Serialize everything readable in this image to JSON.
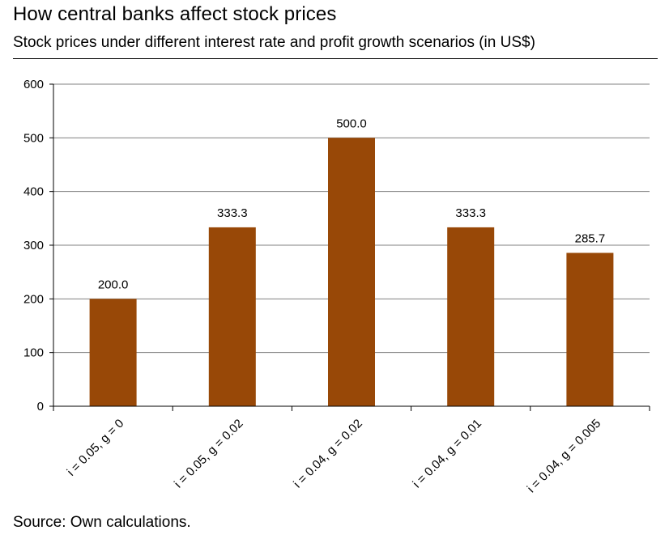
{
  "title": "How central banks affect stock prices",
  "subtitle": "Stock prices under different interest rate and profit growth scenarios (in US$)",
  "source": "Source: Own calculations.",
  "chart_data": {
    "type": "bar",
    "categories": [
      "i = 0.05, g = 0",
      "i = 0.05, g = 0.02",
      "i = 0.04, g = 0.02",
      "i = 0.04, g = 0.01",
      "i = 0.04, g = 0.005"
    ],
    "values": [
      200.0,
      333.3,
      500.0,
      333.3,
      285.7
    ],
    "data_labels": [
      "200.0",
      "333.3",
      "500.0",
      "333.3",
      "285.7"
    ],
    "ylim": [
      0,
      600
    ],
    "yticks": [
      0,
      100,
      200,
      300,
      400,
      500,
      600
    ],
    "xlabel": "",
    "ylabel": "",
    "grid": true,
    "bar_color": "#984807",
    "grid_color": "#808080"
  }
}
